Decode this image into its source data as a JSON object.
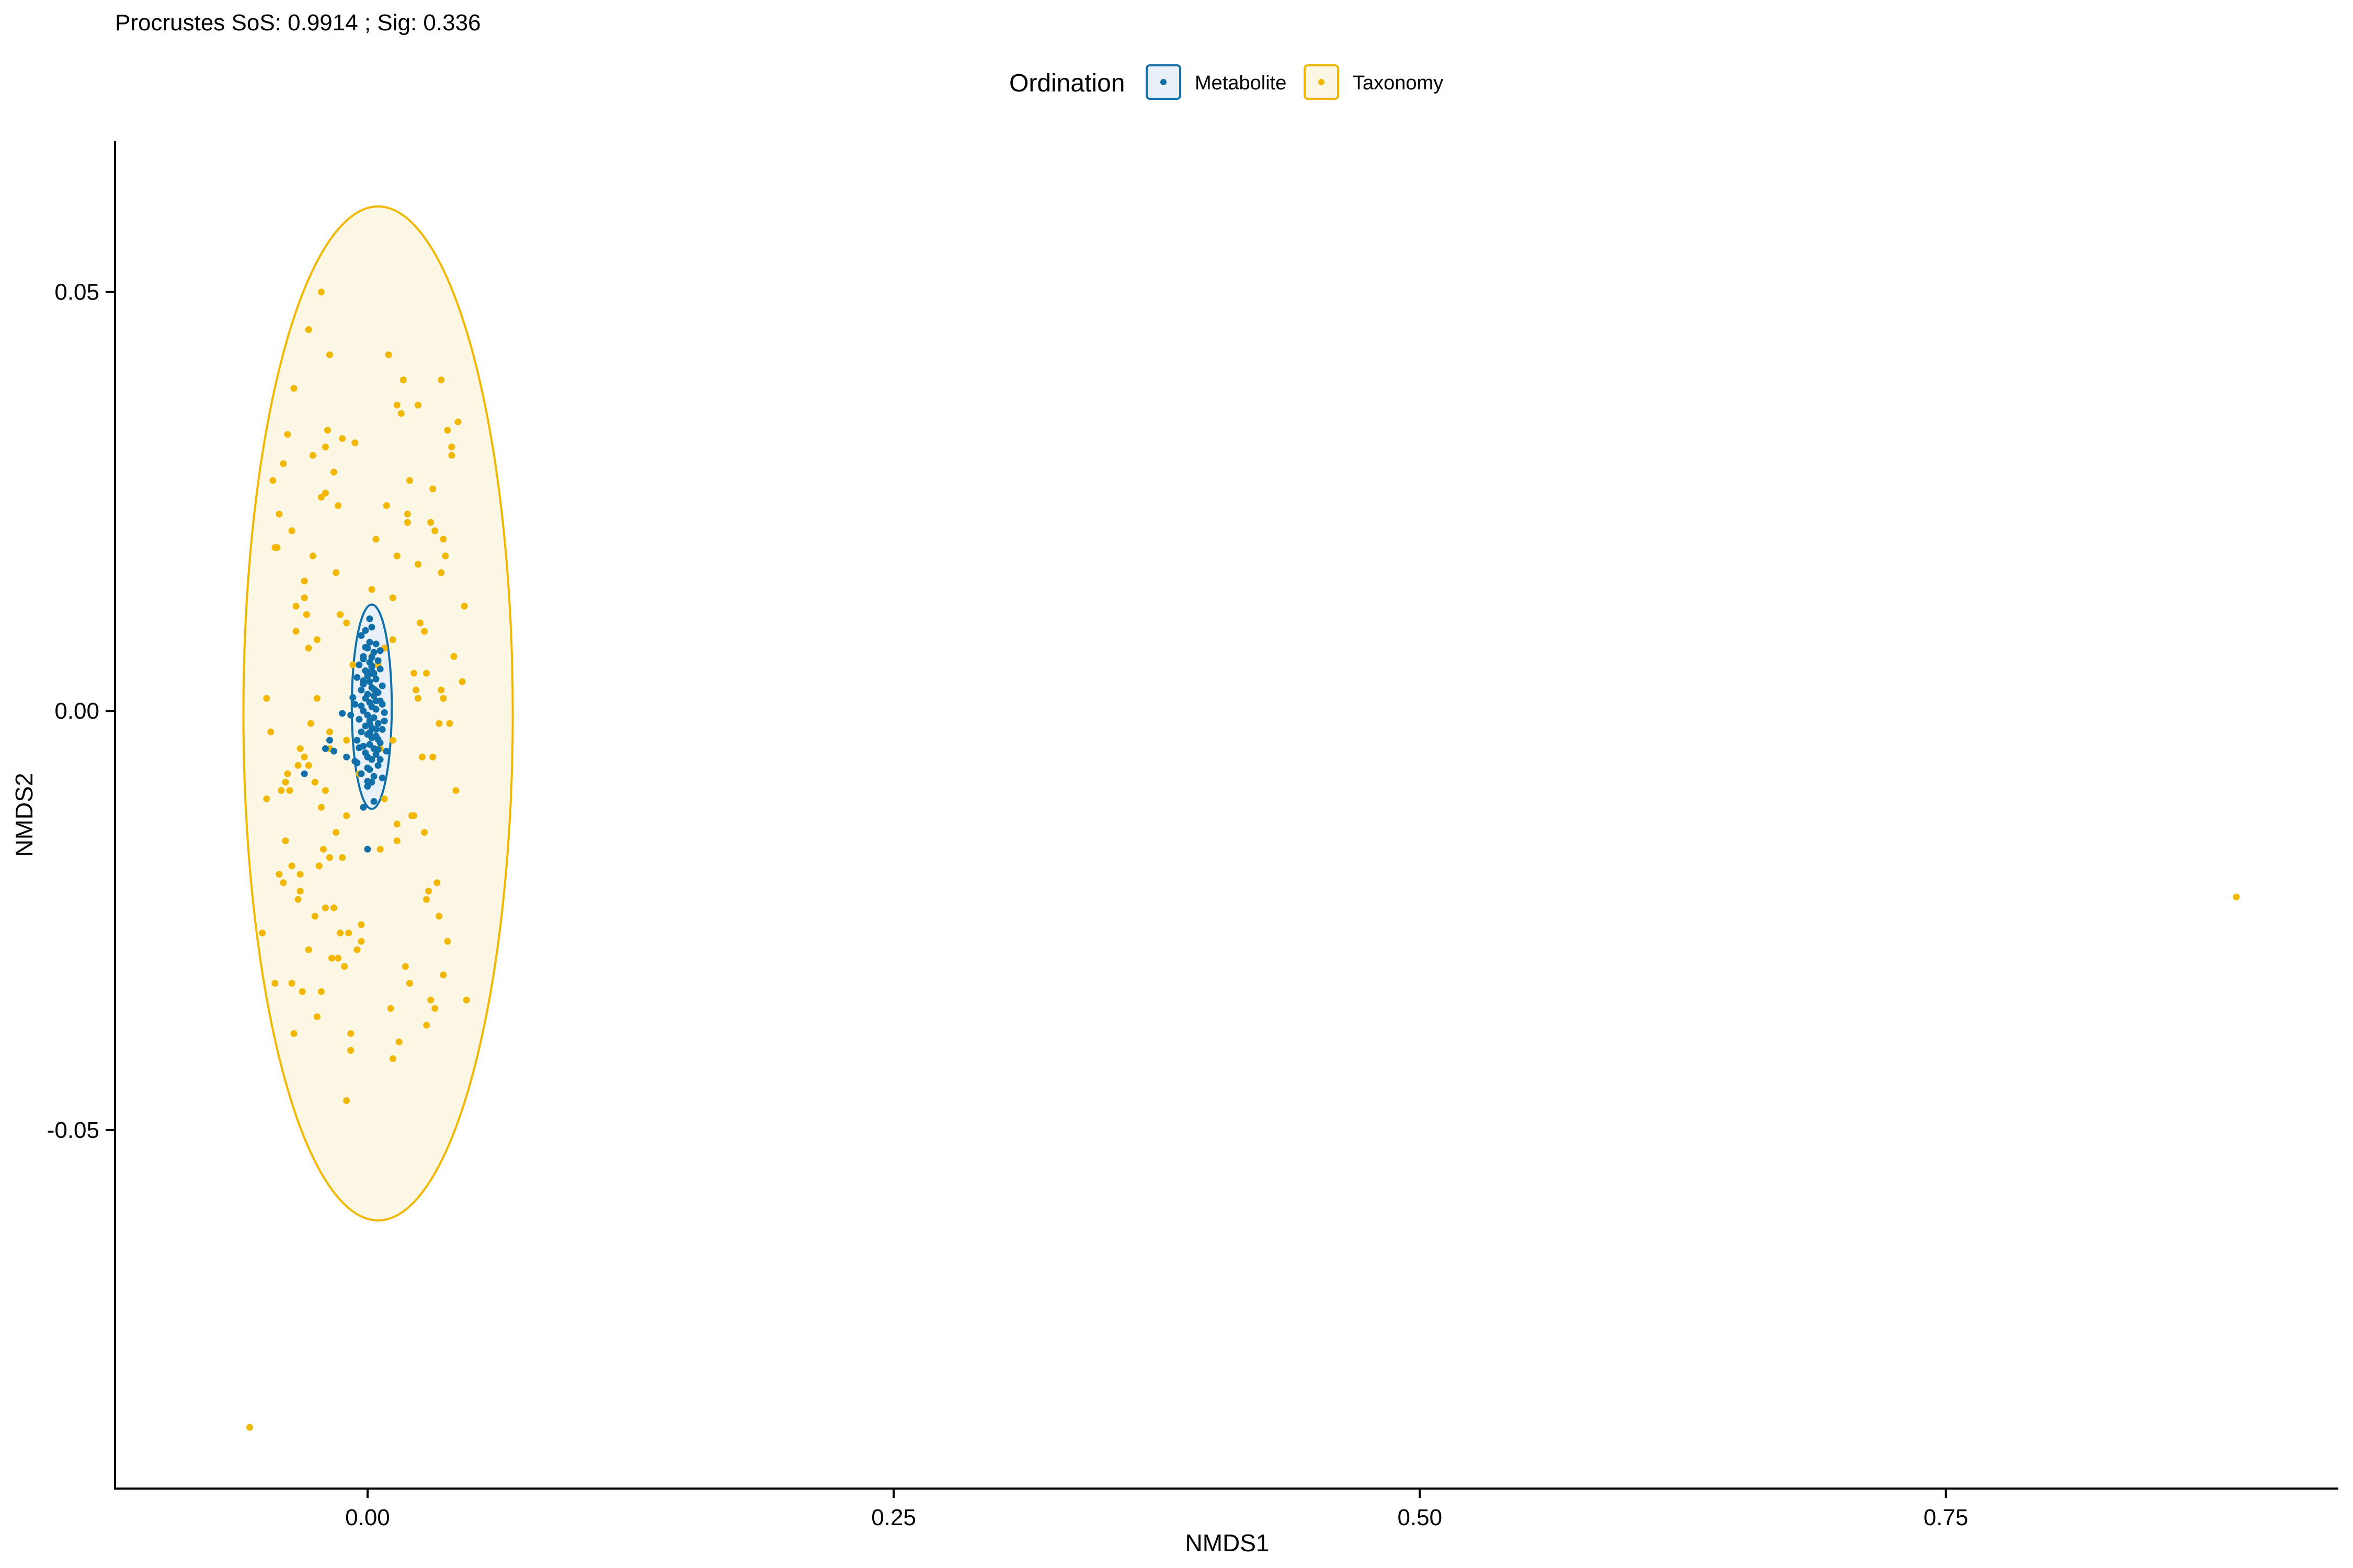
{
  "chart_data": {
    "type": "scatter",
    "title": "Procrustes SoS: 0.9914 ; Sig: 0.336",
    "xlabel": "NMDS1",
    "ylabel": "NMDS2",
    "xlim": [
      -0.12,
      0.9365
    ],
    "ylim": [
      -0.0928,
      0.068
    ],
    "xticks": [
      0.0,
      0.25,
      0.5,
      0.75
    ],
    "xtick_labels": [
      "0.00",
      "0.25",
      "0.50",
      "0.75"
    ],
    "yticks": [
      0.05,
      0.0,
      -0.05
    ],
    "ytick_labels": [
      "0.05",
      "0.00",
      "-0.05"
    ],
    "grid": false,
    "legend": {
      "title": "Ordination",
      "position": "top",
      "entries": [
        "Metabolite",
        "Taxonomy"
      ]
    },
    "ellipses": [
      {
        "series": "Metabolite",
        "center": [
          0.002,
          0.0005
        ],
        "rx": 0.0095,
        "ry": 0.0122,
        "rotation_deg": 0
      },
      {
        "series": "Taxonomy",
        "center": [
          0.005,
          -0.0003
        ],
        "rx": 0.064,
        "ry": 0.0605,
        "rotation_deg": 0
      }
    ],
    "series": [
      {
        "name": "Metabolite",
        "color": "#1170AA",
        "fill": "#E8F1F8",
        "x": [
          0.001,
          0.002,
          -0.003,
          0.004,
          0.0,
          0.003,
          -0.002,
          0.005,
          0.001,
          -0.004,
          0.002,
          0.006,
          -0.001,
          0.003,
          0.0,
          -0.005,
          0.004,
          0.001,
          -0.002,
          0.007,
          0.002,
          -0.003,
          0.005,
          0.0,
          0.003,
          -0.001,
          0.006,
          0.001,
          -0.006,
          0.002,
          0.004,
          -0.002,
          0.008,
          0.0,
          0.003,
          -0.004,
          0.001,
          0.005,
          -0.001,
          0.002,
          0.007,
          -0.003,
          0.0,
          0.004,
          0.002,
          -0.005,
          0.006,
          0.001,
          -0.002,
          0.003,
          0.009,
          -0.001,
          0.004,
          0.0,
          0.002,
          -0.006,
          0.005,
          0.001,
          -0.003,
          0.007,
          0.002,
          0.0,
          -0.002,
          0.004,
          0.001,
          0.006,
          -0.004,
          0.003,
          0.0,
          -0.001,
          0.005,
          0.002,
          -0.007,
          0.004,
          0.001,
          0.008,
          -0.002,
          0.003,
          0.0,
          0.006,
          -0.003,
          0.002,
          0.005,
          -0.001,
          0.001,
          0.004,
          -0.005,
          0.007,
          0.0,
          0.003,
          -0.008,
          -0.012,
          -0.018,
          -0.02,
          -0.016,
          -0.01,
          -0.03,
          0.0,
          0.003,
          -0.002
        ],
        "y": [
          0.011,
          0.01,
          0.009,
          0.008,
          0.0075,
          0.007,
          0.0065,
          0.006,
          0.0058,
          0.0055,
          0.0052,
          0.005,
          0.0048,
          0.0045,
          0.0042,
          0.004,
          0.0038,
          0.0035,
          0.0032,
          0.003,
          0.0028,
          0.0025,
          0.0022,
          0.002,
          0.0018,
          0.0015,
          0.0012,
          0.001,
          0.0008,
          0.0005,
          0.0002,
          0.0,
          -0.0002,
          -0.0005,
          -0.0008,
          -0.001,
          -0.0012,
          -0.0015,
          -0.0018,
          -0.002,
          -0.0022,
          -0.0025,
          -0.0028,
          -0.003,
          -0.0032,
          -0.0035,
          -0.0038,
          -0.004,
          -0.0042,
          -0.0045,
          -0.0048,
          -0.005,
          -0.0052,
          -0.0055,
          -0.0058,
          -0.006,
          -0.0065,
          -0.007,
          -0.0075,
          -0.008,
          -0.0085,
          -0.009,
          0.0062,
          0.0012,
          -0.0016,
          0.0072,
          -0.0044,
          0.0026,
          -0.0068,
          0.0096,
          -0.0034,
          0.0054,
          0.0016,
          -0.0022,
          0.0082,
          -0.0012,
          0.0036,
          -0.0078,
          0.0046,
          -0.0058,
          0.0006,
          0.0064,
          -0.0046,
          0.0076,
          -0.0026,
          0.0024,
          -0.0062,
          0.0008,
          -0.0084,
          0.0044,
          -0.0005,
          -0.0003,
          -0.0035,
          -0.0045,
          -0.0048,
          -0.0055,
          -0.0075,
          -0.0165,
          -0.0108,
          -0.0115
        ]
      },
      {
        "name": "Taxonomy",
        "color": "#F2B701",
        "fill": "#FDF8E6",
        "x": [
          -0.056,
          0.888,
          -0.022,
          -0.028,
          -0.018,
          -0.038,
          -0.006,
          -0.02,
          0.014,
          0.002,
          -0.01,
          0.035,
          0.036,
          -0.026,
          -0.013,
          0.012,
          -0.024,
          0.024,
          -0.048,
          -0.01,
          -0.028,
          -0.004,
          -0.02,
          0.014,
          0.006,
          -0.036,
          -0.032,
          -0.016,
          -0.003,
          -0.044,
          -0.022,
          0.032,
          0.028,
          0.012,
          -0.01,
          0.038,
          0.02,
          0.03,
          -0.015,
          -0.034,
          0.005,
          0.022,
          0.035,
          -0.018,
          -0.03,
          0.008,
          0.027,
          -0.012,
          -0.04,
          -0.025,
          -0.005,
          0.018,
          0.03,
          -0.035,
          -0.008,
          0.024,
          0.04,
          -0.022,
          -0.044,
          0.012,
          -0.028,
          0.034,
          -0.018,
          -0.039,
          -0.01,
          0.014,
          -0.032,
          0.028,
          -0.05,
          -0.014,
          0.02,
          -0.024,
          0.037,
          -0.041,
          0.009,
          -0.027,
          0.042,
          -0.012,
          0.002,
          0.031,
          -0.036,
          -0.021,
          0.045,
          -0.009,
          0.017,
          -0.033,
          0.025,
          -0.048,
          -0.016,
          0.036,
          -0.03,
          0.006,
          -0.042,
          0.022,
          -0.019,
          0.033,
          -0.034,
          0.011,
          -0.026,
          0.039,
          -0.045,
          -0.003,
          0.028,
          -0.038,
          0.014,
          -0.023,
          0.046,
          -0.031,
          0.004,
          0.026,
          -0.04,
          -0.015,
          0.036,
          -0.028,
          0.019,
          -0.037,
          0.043,
          -0.02,
          0.008,
          -0.046,
          0.031,
          -0.011,
          0.024,
          -0.033,
          0.04,
          -0.018,
          -0.029,
          0.015,
          -0.043,
          0.034,
          -0.007,
          0.021,
          -0.035,
          0.029,
          -0.024,
          0.047,
          -0.014,
          0.012,
          -0.03,
          0.038,
          -0.02,
          -0.039,
          0.023,
          -0.008,
          0.032,
          -0.025,
          0.016,
          -0.042,
          0.027,
          -0.017,
          0.035,
          -0.032,
          0.01,
          -0.022,
          0.041,
          -0.036,
          0.019,
          -0.013
        ],
        "y": [
          -0.0855,
          -0.0222,
          0.05,
          0.0455,
          0.0425,
          0.033,
          0.032,
          0.026,
          0.0185,
          0.0145,
          0.0105,
          0.0395,
          0.0205,
          0.0305,
          0.0115,
          0.0085,
          0.0015,
          0.0015,
          0.0015,
          -0.0035,
          -0.0065,
          -0.0075,
          -0.0095,
          -0.0135,
          -0.0165,
          -0.0185,
          -0.0215,
          -0.0235,
          -0.0275,
          -0.0325,
          -0.0335,
          -0.0355,
          -0.0375,
          -0.0415,
          -0.0465,
          0.0335,
          0.0275,
          0.0225,
          0.0165,
          0.0125,
          0.0055,
          0.0045,
          0.0025,
          -0.0025,
          -0.0055,
          -0.0105,
          -0.0145,
          -0.0175,
          -0.0205,
          -0.0245,
          -0.0285,
          -0.0305,
          -0.0345,
          -0.0385,
          -0.0405,
          0.0365,
          0.0305,
          0.0255,
          0.0195,
          0.0135,
          0.0075,
          -0.0015,
          -0.0045,
          -0.0085,
          -0.0125,
          -0.0155,
          -0.0195,
          -0.0225,
          -0.0265,
          -0.0295,
          -0.0325,
          -0.0365,
          0.0185,
          -0.0095,
          0.0245,
          -0.0015,
          -0.0095,
          0.0325,
          0.0065,
          -0.0055,
          0.0215,
          -0.0165,
          0.0035,
          -0.0265,
          0.0395,
          -0.0225,
          0.0105,
          -0.0105,
          0.0285,
          -0.0315,
          0.0155,
          -0.0045,
          0.0235,
          -0.0125,
          0.0335,
          -0.0205,
          0.0095,
          -0.0355,
          0.0185,
          -0.0015,
          0.0275,
          -0.0255,
          0.0045,
          -0.0075,
          0.0365,
          -0.0185,
          0.0125,
          -0.0335,
          0.0205,
          -0.0055,
          0.0295,
          -0.0145,
          0.0015,
          -0.0285,
          0.0225,
          -0.0095,
          0.0345,
          -0.0235,
          0.0075,
          -0.0025,
          0.0265,
          -0.0305,
          0.0175,
          -0.0065,
          0.0315,
          -0.0175,
          0.0115,
          -0.0395,
          0.0195,
          -0.0245,
          0.0055,
          -0.0125,
          0.0385,
          -0.0215,
          0.0085,
          -0.0345,
          0.0245,
          -0.0035,
          0.0135,
          -0.0275,
          0.0315,
          -0.0155,
          0.0025,
          -0.0385,
          0.0215,
          -0.0085,
          0.0355,
          -0.0195,
          0.0095,
          -0.0295,
          0.0165,
          -0.0045,
          0.0425,
          -0.0115,
          0.0065,
          -0.0325,
          0.0235,
          -0.0265
        ]
      }
    ]
  }
}
